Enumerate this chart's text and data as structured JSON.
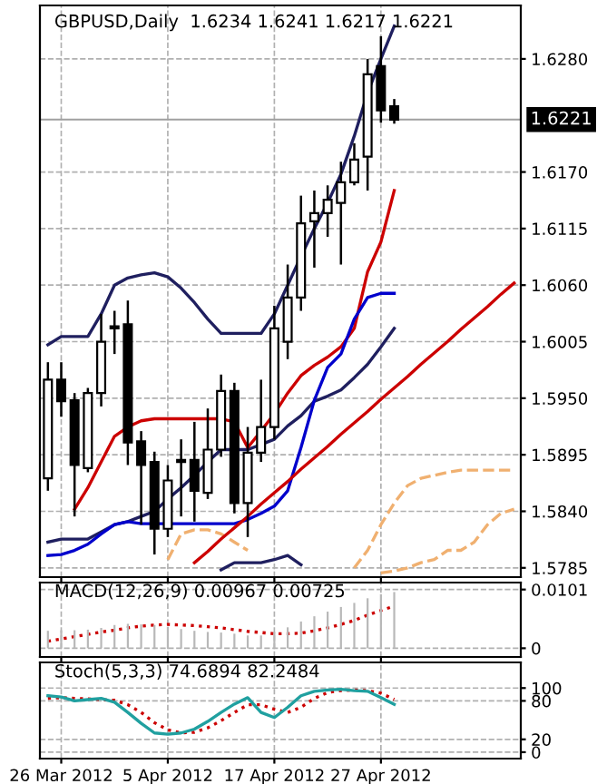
{
  "chart_data": [
    {
      "type": "candlestick",
      "title": "GBPUSD,Daily  1.6234 1.6241 1.6217 1.6221",
      "categories": [
        null,
        null,
        null,
        null,
        null,
        null,
        null,
        null,
        null,
        null,
        null,
        null,
        null,
        null,
        null,
        null,
        null,
        null,
        null,
        null,
        null,
        null,
        null,
        null,
        null,
        null,
        null,
        null,
        null,
        null,
        null,
        null,
        null,
        null,
        null,
        null
      ],
      "ohlc": [
        [
          1.5872,
          1.5985,
          1.586,
          1.5968
        ],
        [
          1.5968,
          1.5985,
          1.5932,
          1.5947
        ],
        [
          1.5948,
          1.5955,
          1.5835,
          1.5885
        ],
        [
          1.5882,
          1.596,
          1.5878,
          1.5955
        ],
        [
          1.5955,
          1.6032,
          1.5942,
          1.6005
        ],
        [
          1.602,
          1.6035,
          1.5993,
          1.6018
        ],
        [
          1.6022,
          1.6045,
          1.5885,
          1.5907
        ],
        [
          1.5908,
          1.5918,
          1.5827,
          1.5885
        ],
        [
          1.5888,
          1.5898,
          1.5798,
          1.5823
        ],
        [
          1.5823,
          1.5885,
          1.5815,
          1.587
        ],
        [
          1.5888,
          1.591,
          1.5835,
          1.589
        ],
        [
          1.589,
          1.5927,
          1.583,
          1.586
        ],
        [
          1.5858,
          1.594,
          1.5852,
          1.59
        ],
        [
          1.59,
          1.5973,
          1.5893,
          1.5957
        ],
        [
          1.5957,
          1.5965,
          1.5838,
          1.5848
        ],
        [
          1.5848,
          1.5922,
          1.5815,
          1.5897
        ],
        [
          1.5897,
          1.5968,
          1.5888,
          1.5922
        ],
        [
          1.5922,
          1.604,
          1.591,
          1.6018
        ],
        [
          1.6005,
          1.608,
          1.5988,
          1.6048
        ],
        [
          1.6048,
          1.6147,
          1.6035,
          1.612
        ],
        [
          1.6122,
          1.6152,
          1.6077,
          1.613
        ],
        [
          1.613,
          1.6157,
          1.6107,
          1.6143
        ],
        [
          1.614,
          1.618,
          1.608,
          1.616
        ],
        [
          1.616,
          1.6198,
          1.6157,
          1.6182
        ],
        [
          1.6185,
          1.628,
          1.6152,
          1.6265
        ],
        [
          1.6273,
          1.6302,
          1.6218,
          1.623
        ],
        [
          1.6234,
          1.6241,
          1.6217,
          1.6221
        ],
        null,
        null,
        null,
        null,
        null,
        null,
        null,
        null,
        null
      ],
      "series": [
        {
          "type": "line",
          "color": "#f0b070",
          "line_style": "dashed",
          "values": [
            null,
            null,
            null,
            null,
            null,
            null,
            null,
            null,
            null,
            1.5793,
            1.5818,
            1.5822,
            1.5822,
            1.5818,
            1.581,
            1.5802,
            null,
            null,
            null,
            null,
            null,
            null,
            null,
            1.5785,
            1.5802,
            1.5827,
            1.5848,
            1.5865,
            1.5872,
            1.5875,
            1.5878,
            1.588,
            1.588,
            1.588,
            1.588,
            1.588
          ]
        },
        {
          "type": "line",
          "color": "#f0b070",
          "line_style": "dashed",
          "values": [
            null,
            null,
            null,
            null,
            null,
            null,
            null,
            null,
            null,
            null,
            null,
            null,
            null,
            null,
            null,
            null,
            null,
            null,
            null,
            null,
            null,
            null,
            null,
            null,
            null,
            1.578,
            1.5782,
            1.5785,
            1.579,
            1.5793,
            1.5802,
            1.5802,
            1.581,
            1.5827,
            1.5838,
            1.5842
          ]
        },
        {
          "type": "line",
          "color": "#1f1f5f",
          "values": [
            1.6002,
            1.601,
            1.601,
            1.601,
            1.6032,
            1.606,
            1.6067,
            1.607,
            1.6072,
            1.6068,
            1.6057,
            1.6043,
            1.6027,
            1.6013,
            1.6013,
            1.6013,
            1.6013,
            1.6032,
            1.606,
            1.6088,
            1.6115,
            1.614,
            1.6168,
            1.6205,
            1.6247,
            1.628,
            1.6312,
            null,
            null,
            null,
            null,
            null,
            null,
            null,
            null,
            null
          ]
        },
        {
          "type": "line",
          "color": "#1f1f5f",
          "values": [
            1.581,
            1.5813,
            1.5813,
            1.5813,
            1.582,
            1.5827,
            1.583,
            1.5835,
            1.584,
            1.5852,
            1.5863,
            1.5875,
            1.5888,
            1.59,
            1.59,
            1.59,
            1.5905,
            1.591,
            1.5923,
            1.5933,
            1.5947,
            1.5952,
            1.5958,
            1.597,
            1.5983,
            1.6,
            1.6018,
            null,
            null,
            null,
            null,
            null,
            null,
            null,
            null,
            null
          ]
        },
        {
          "type": "line",
          "color": "#1f1f5f",
          "values": [
            null,
            null,
            null,
            null,
            null,
            null,
            null,
            null,
            null,
            null,
            null,
            null,
            null,
            1.5783,
            1.579,
            1.579,
            1.579,
            1.5793,
            1.5797,
            1.5788,
            null,
            null,
            null,
            null,
            null,
            null,
            null,
            null,
            null,
            null,
            null,
            null,
            null,
            null,
            null,
            null
          ]
        },
        {
          "type": "line",
          "color": "#cc0000",
          "values": [
            null,
            null,
            1.5842,
            1.5863,
            1.5888,
            1.5913,
            1.5922,
            1.5928,
            1.593,
            1.593,
            1.593,
            1.593,
            1.593,
            1.593,
            1.5927,
            1.5902,
            1.5918,
            1.5935,
            1.5955,
            1.5972,
            1.5982,
            1.599,
            1.6,
            1.6018,
            1.6073,
            1.6102,
            1.6152,
            null,
            null,
            null,
            null,
            null,
            null,
            null,
            null,
            null
          ]
        },
        {
          "type": "line",
          "color": "#0000cc",
          "values": [
            1.5797,
            1.5798,
            1.5802,
            1.5808,
            1.5818,
            1.5827,
            1.583,
            1.5828,
            1.5828,
            1.5828,
            1.5828,
            1.5828,
            1.5828,
            1.5828,
            1.5828,
            1.5832,
            1.5838,
            1.5845,
            1.586,
            1.5902,
            1.5948,
            1.598,
            1.5993,
            1.6027,
            1.6048,
            1.6052,
            1.6052,
            null,
            null,
            null,
            null,
            null,
            null,
            null,
            null,
            null
          ]
        },
        {
          "type": "line",
          "color": "#cc0000",
          "values": [
            null,
            null,
            null,
            null,
            null,
            null,
            null,
            null,
            null,
            null,
            null,
            1.579,
            1.5801,
            1.5813,
            1.5824,
            1.5835,
            1.5847,
            1.5858,
            1.5869,
            1.5881,
            1.5892,
            1.5903,
            1.5915,
            1.5926,
            1.5937,
            1.5949,
            1.596,
            1.5971,
            1.5983,
            1.5994,
            1.6005,
            1.6017,
            1.6028,
            1.6039,
            1.6051,
            1.6062
          ]
        }
      ],
      "ylim": [
        1.5776,
        1.6332
      ],
      "yticks": [
        1.5785,
        {
          "value": 1.584,
          "label": "1.5840"
        },
        1.5895,
        {
          "value": 1.595,
          "label": "1.5950"
        },
        1.6005,
        {
          "value": 1.606,
          "label": "1.6060"
        },
        1.6115,
        {
          "value": 1.617,
          "label": "1.6170"
        },
        {
          "value": 1.628,
          "label": "1.6280"
        }
      ],
      "ref_lines": [
        {
          "axis": "y",
          "value": 1.6221,
          "label": "1.6221",
          "color": "#a0a0a0"
        }
      ],
      "grid": true,
      "tick_labels": "y"
    },
    {
      "type": "bar",
      "title": "MACD(12,26,9) 0.00967 0.00725",
      "categories": [
        null,
        null,
        null,
        null,
        null,
        null,
        null,
        null,
        null,
        null,
        null,
        null,
        null,
        null,
        null,
        null,
        null,
        null,
        null,
        null,
        null,
        null,
        null,
        null,
        null,
        null,
        null,
        null,
        null,
        null,
        null,
        null,
        null,
        null,
        null,
        null
      ],
      "series": [
        {
          "type": "bar",
          "color": "#b8b8b8",
          "values": [
            0.003,
            0.0031,
            0.0031,
            0.0032,
            0.0035,
            0.004,
            0.0042,
            0.0041,
            0.004,
            0.0037,
            0.0033,
            0.003,
            0.0028,
            0.0027,
            0.0025,
            0.0022,
            0.0022,
            0.0028,
            0.0036,
            0.0046,
            0.0055,
            0.0063,
            0.0071,
            0.0078,
            0.0086,
            0.0093,
            0.00967,
            null,
            null,
            null,
            null,
            null,
            null,
            null,
            null,
            null
          ]
        },
        {
          "type": "line",
          "color": "#cc0000",
          "line_style": "dotted",
          "values": [
            0.0012,
            0.0016,
            0.002,
            0.0024,
            0.0028,
            0.0031,
            0.0035,
            0.0038,
            0.004,
            0.0041,
            0.004,
            0.0039,
            0.0037,
            0.0035,
            0.0032,
            0.0029,
            0.0027,
            0.0025,
            0.0025,
            0.0026,
            0.003,
            0.0035,
            0.0041,
            0.0048,
            0.0057,
            0.0065,
            0.00725,
            null,
            null,
            null,
            null,
            null,
            null,
            null,
            null,
            null
          ]
        }
      ],
      "ylim": [
        -0.0015,
        0.0113
      ],
      "yticks": [
        0,
        0.0101
      ],
      "grid": true,
      "tick_labels": "y"
    },
    {
      "type": "line",
      "title": "Stoch(5,3,3) 74.6894 82.2484",
      "categories": [
        null,
        "26 Mar 2012",
        null,
        null,
        null,
        null,
        null,
        null,
        null,
        "5 Apr 2012",
        null,
        null,
        null,
        null,
        null,
        null,
        null,
        "17 Apr 2012",
        null,
        null,
        null,
        null,
        null,
        null,
        null,
        "27 Apr 2012",
        null,
        null,
        null,
        null,
        null,
        null,
        null,
        null,
        null,
        null
      ],
      "series": [
        {
          "color": "#20a0a0",
          "line_style": "solid",
          "values": [
            88,
            86,
            80,
            82,
            84,
            78,
            62,
            45,
            30,
            28,
            30,
            36,
            48,
            62,
            75,
            85,
            62,
            54,
            70,
            88,
            95,
            97,
            98,
            96,
            95,
            85,
            74.6894,
            null,
            null,
            null,
            null,
            null,
            null,
            null,
            null,
            null
          ]
        },
        {
          "color": "#cc0000",
          "line_style": "dotted",
          "values": [
            84,
            85,
            84,
            83,
            82,
            81,
            74,
            62,
            46,
            35,
            30,
            31,
            38,
            49,
            62,
            74,
            74,
            67,
            62,
            70,
            84,
            93,
            96,
            97,
            96,
            92,
            82.2484,
            null,
            null,
            null,
            null,
            null,
            null,
            null,
            null,
            null
          ]
        }
      ],
      "ylim": [
        -10,
        140
      ],
      "yticks": [
        0,
        20,
        80,
        100
      ],
      "grid": true
    }
  ]
}
